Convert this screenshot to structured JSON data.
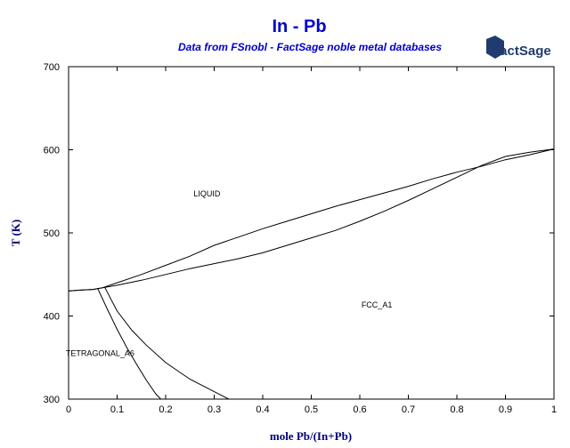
{
  "colors": {
    "title": "#0000cc",
    "axis_label": "#00007a",
    "curve": "#000000",
    "logo": "#1f3b6f"
  },
  "logo": {
    "text": "FactSage"
  },
  "chart_data": {
    "type": "line",
    "title": "In - Pb",
    "subtitle": "Data from FSnobl - FactSage noble metal databases",
    "xlabel": "mole Pb/(In+Pb)",
    "ylabel": "T (K)",
    "xlim": [
      0,
      1
    ],
    "ylim": [
      300,
      700
    ],
    "xticks": [
      0,
      0.1,
      0.2,
      0.3,
      0.4,
      0.5,
      0.6,
      0.7,
      0.8,
      0.9,
      1
    ],
    "yticks": [
      300,
      400,
      500,
      600,
      700
    ],
    "grid": false,
    "phase_labels": [
      {
        "text": "LIQUID",
        "x": 0.285,
        "y": 544
      },
      {
        "text": "FCC_A1",
        "x": 0.635,
        "y": 410
      },
      {
        "text": "TETRAGONAL_A6",
        "x": 0.065,
        "y": 352
      }
    ],
    "series": [
      {
        "x": [
          0,
          0.02,
          0.05,
          0.07,
          0.1,
          0.15,
          0.2,
          0.25,
          0.3,
          0.35,
          0.4,
          0.45,
          0.5,
          0.55,
          0.6,
          0.65,
          0.7,
          0.75,
          0.8,
          0.85,
          0.9,
          0.95,
          1.0
        ],
        "y": [
          430,
          431,
          432,
          434,
          440,
          450,
          461,
          472,
          485,
          495,
          505,
          514,
          523,
          532,
          540,
          548,
          556,
          565,
          573,
          580,
          588,
          594,
          601
        ]
      },
      {
        "x": [
          0,
          0.02,
          0.05,
          0.07,
          0.1,
          0.15,
          0.2,
          0.25,
          0.3,
          0.35,
          0.4,
          0.45,
          0.5,
          0.55,
          0.6,
          0.65,
          0.7,
          0.75,
          0.8,
          0.85,
          0.9,
          0.95,
          1.0
        ],
        "y": [
          430,
          431,
          432,
          434,
          437,
          443,
          450,
          457,
          463,
          469,
          476,
          485,
          494,
          503,
          514,
          526,
          539,
          553,
          567,
          581,
          592,
          597,
          601
        ]
      },
      {
        "x": [
          0.06,
          0.08,
          0.1,
          0.12,
          0.14,
          0.16,
          0.18,
          0.19
        ],
        "y": [
          433,
          408,
          384,
          362,
          342,
          323,
          306,
          300
        ]
      },
      {
        "x": [
          0.075,
          0.1,
          0.13,
          0.16,
          0.2,
          0.25,
          0.3,
          0.33
        ],
        "y": [
          434,
          406,
          383,
          365,
          344,
          324,
          309,
          300
        ]
      }
    ]
  }
}
